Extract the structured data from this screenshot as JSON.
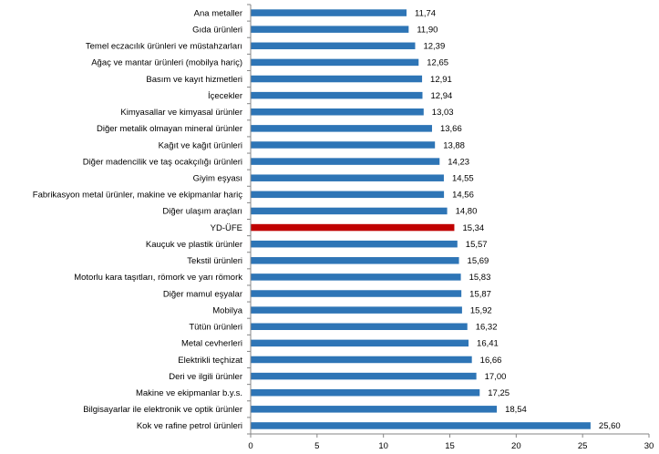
{
  "chart_data": {
    "type": "bar",
    "orientation": "horizontal",
    "categories": [
      "Ana metaller",
      "Gıda ürünleri",
      "Temel eczacılık ürünleri ve müstahzarları",
      "Ağaç ve mantar ürünleri (mobilya hariç)",
      "Basım ve kayıt hizmetleri",
      "İçecekler",
      "Kimyasallar ve kimyasal ürünler",
      "Diğer metalik olmayan mineral ürünler",
      "Kağıt ve kağıt ürünleri",
      "Diğer madencilik ve taş ocakçılığı ürünleri",
      "Giyim eşyası",
      "Fabrikasyon metal ürünler, makine ve ekipmanlar hariç",
      "Diğer ulaşım araçları",
      "YD-ÜFE",
      "Kauçuk ve plastik ürünler",
      "Tekstil ürünleri",
      "Motorlu kara taşıtları, römork ve yarı römork",
      "Diğer mamul eşyalar",
      "Mobilya",
      "Tütün ürünleri",
      "Metal cevherleri",
      "Elektrikli teçhizat",
      "Deri ve ilgili ürünler",
      "Makine ve ekipmanlar b.y.s.",
      "Bilgisayarlar ile elektronik ve optik ürünler",
      "Kok ve rafine petrol ürünleri"
    ],
    "values": [
      11.74,
      11.9,
      12.39,
      12.65,
      12.91,
      12.94,
      13.03,
      13.66,
      13.88,
      14.23,
      14.55,
      14.56,
      14.8,
      15.34,
      15.57,
      15.69,
      15.83,
      15.87,
      15.92,
      16.32,
      16.41,
      16.66,
      17.0,
      17.25,
      18.54,
      25.6
    ],
    "value_labels": [
      "11,74",
      "11,90",
      "12,39",
      "12,65",
      "12,91",
      "12,94",
      "13,03",
      "13,66",
      "13,88",
      "14,23",
      "14,55",
      "14,56",
      "14,80",
      "15,34",
      "15,57",
      "15,69",
      "15,83",
      "15,87",
      "15,92",
      "16,32",
      "16,41",
      "16,66",
      "17,00",
      "17,25",
      "18,54",
      "25,60"
    ],
    "highlight_category": "YD-ÜFE",
    "xlim": [
      0,
      30
    ],
    "xticks": [
      0,
      5,
      10,
      15,
      20,
      25,
      30
    ],
    "title": "",
    "xlabel": "",
    "ylabel": "",
    "grid": false,
    "colors": {
      "bar": "#2e75b6",
      "highlight": "#c00000",
      "axis": "#868686"
    }
  }
}
